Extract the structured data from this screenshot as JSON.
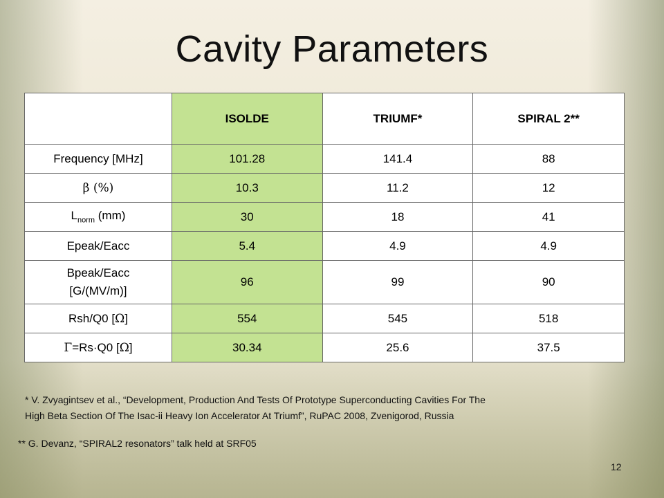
{
  "slide": {
    "title": "Cavity Parameters",
    "page_number": "12"
  },
  "table": {
    "headers": [
      "",
      "ISOLDE",
      "TRIUMF*",
      "SPIRAL 2**"
    ],
    "rows": [
      {
        "label": "Frequency [MHz]",
        "isolde": "101.28",
        "triumf": "141.4",
        "spiral": "88"
      },
      {
        "label_symbol": "β",
        "label_suffix": " (%)",
        "isolde": "10.3",
        "triumf": "11.2",
        "spiral": "12"
      },
      {
        "label_main": "L",
        "label_sub": "norm",
        "label_suffix": " (mm)",
        "isolde": "30",
        "triumf": "18",
        "spiral": "41"
      },
      {
        "label": "Epeak/Eacc",
        "isolde": "5.4",
        "triumf": "4.9",
        "spiral": "4.9"
      },
      {
        "label_line1": "Bpeak/Eacc",
        "label_line2": "[G/(MV/m)]",
        "isolde": "96",
        "triumf": "99",
        "spiral": "90"
      },
      {
        "label_prefix": "Rsh/Q0 [",
        "label_symbol": "Ω",
        "label_suffix": "]",
        "isolde": "554",
        "triumf": "545",
        "spiral": "518"
      },
      {
        "label_symbol": "Γ",
        "label_mid": "=Rs·Q0 [",
        "label_symbol2": "Ω",
        "label_suffix": "]",
        "isolde": "30.34",
        "triumf": "25.6",
        "spiral": "37.5"
      }
    ]
  },
  "footnotes": {
    "note1_line1": "* V. Zvyagintsev et al., “Development, Production And Tests Of Prototype Superconducting Cavities For The",
    "note1_line2": "High Beta Section Of The Isac-ii Heavy Ion Accelerator At Triumf”, RuPAC 2008, Zvenigorod, Russia",
    "note2": "** G. Devanz, “SPIRAL2 resonators” talk held at SRF05"
  },
  "colors": {
    "highlight_column": "#c3e292",
    "table_background": "#ffffff",
    "border": "#666666"
  }
}
